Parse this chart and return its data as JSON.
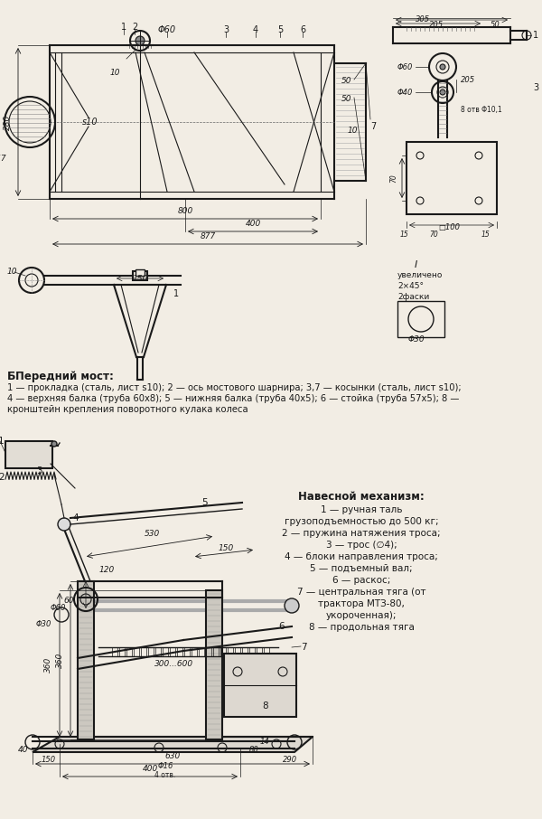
{
  "bg_color": "#f2ede4",
  "col": "#1a1a1a",
  "section1_title": "Передний мост:",
  "section1_text1": "1 — прокладка (сталь, лист s10); 2 — ось мостового шарнира; 3,7 — косынки (сталь, лист s10);",
  "section1_text2": "4 — верхняя балка (труба 60х8); 5 — нижняя балка (труба 40х5); 6 — стойка (труба 57х5); 8 —",
  "section1_text3": "кронштейн крепления поворотного кулака колеса",
  "section2_title": "Навесной механизм:",
  "section2_lines": [
    "1 — ручная таль",
    "грузоподъемностью до 500 кг;",
    "2 — пружина натяжения троса;",
    "3 — трос (∅4);",
    "4 — блоки направления троса;",
    "5 — подъемный вал;",
    "6 — раскос;",
    "7 — центральная тяга (от",
    "трактора МТЗ-80,",
    "укороченная);",
    "8 — продольная тяга"
  ]
}
